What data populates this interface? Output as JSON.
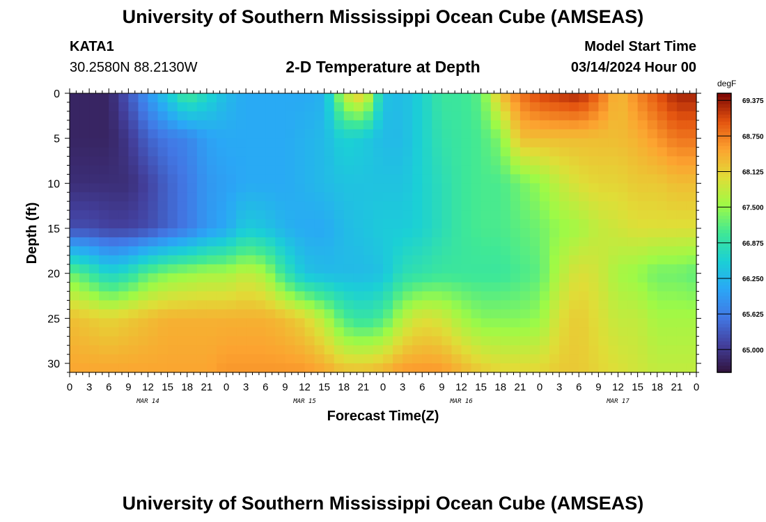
{
  "header": {
    "title": "University of Southern Mississippi Ocean Cube (AMSEAS)",
    "station": "KATA1",
    "coords": "30.2580N  88.2130W",
    "subtitle": "2-D Temperature at Depth",
    "model_start_label": "Model Start Time",
    "model_start_value": "03/14/2024 Hour 00"
  },
  "footer": {
    "title": "University of Southern Mississippi Ocean Cube (AMSEAS)"
  },
  "chart_data": {
    "type": "heatmap",
    "title": "2-D Temperature at Depth",
    "xlabel": "Forecast Time(Z)",
    "ylabel": "Depth (ft)",
    "xlim": [
      0,
      96
    ],
    "ylim": [
      0,
      31
    ],
    "x_ticks": [
      0,
      3,
      6,
      9,
      12,
      15,
      18,
      21,
      24,
      27,
      30,
      33,
      36,
      39,
      42,
      45,
      48,
      51,
      54,
      57,
      60,
      63,
      66,
      69,
      72,
      75,
      78,
      81,
      84,
      87,
      90,
      93,
      96
    ],
    "x_tick_labels": [
      "0",
      "3",
      "6",
      "9",
      "12",
      "15",
      "18",
      "21",
      "0",
      "3",
      "6",
      "9",
      "12",
      "15",
      "18",
      "21",
      "0",
      "3",
      "6",
      "9",
      "12",
      "15",
      "18",
      "21",
      "0",
      "3",
      "6",
      "9",
      "12",
      "15",
      "18",
      "21",
      "0"
    ],
    "date_labels": [
      {
        "x": 12,
        "label": "MAR 14"
      },
      {
        "x": 36,
        "label": "MAR 15"
      },
      {
        "x": 60,
        "label": "MAR 16"
      },
      {
        "x": 84,
        "label": "MAR 17"
      }
    ],
    "y_ticks": [
      0,
      5,
      10,
      15,
      20,
      25,
      30
    ],
    "colorbar": {
      "unit": "degF",
      "min": 64.6,
      "max": 69.5,
      "tick_values": [
        69.375,
        68.75,
        68.125,
        67.5,
        66.875,
        66.25,
        65.625,
        65.0
      ],
      "tick_labels": [
        "69.375",
        "68.750",
        "68.125",
        "67.500",
        "66.875",
        "66.250",
        "65.625",
        "65.000"
      ]
    },
    "grid_times": [
      0,
      3,
      6,
      9,
      12,
      15,
      18,
      21,
      24,
      27,
      30,
      33,
      36,
      39,
      42,
      45,
      48,
      51,
      54,
      57,
      60,
      63,
      66,
      69,
      72,
      75,
      78,
      81,
      84,
      87,
      90,
      93,
      96
    ],
    "grid_depths": [
      0,
      5,
      10,
      15,
      20,
      25,
      31
    ],
    "values": [
      [
        64.8,
        64.8,
        64.8,
        65.3,
        65.9,
        66.5,
        67.1,
        66.7,
        66.3,
        66.1,
        66.1,
        66.1,
        66.1,
        66.2,
        67.8,
        68.3,
        66.4,
        66.3,
        66.6,
        67.0,
        67.0,
        67.2,
        68.3,
        68.8,
        69.1,
        69.2,
        69.3,
        68.9,
        68.3,
        68.7,
        69.0,
        69.3,
        69.3
      ],
      [
        64.8,
        64.8,
        64.8,
        65.0,
        65.4,
        65.6,
        65.7,
        66.0,
        66.1,
        66.1,
        66.1,
        66.1,
        66.2,
        66.3,
        66.6,
        66.5,
        66.3,
        66.3,
        66.6,
        66.9,
        67.0,
        67.1,
        67.4,
        68.3,
        68.3,
        68.3,
        68.3,
        68.3,
        68.3,
        68.4,
        68.6,
        68.8,
        68.8
      ],
      [
        64.9,
        64.9,
        64.9,
        64.9,
        65.1,
        65.4,
        65.6,
        65.9,
        66.0,
        66.1,
        66.1,
        66.1,
        66.2,
        66.3,
        66.4,
        66.4,
        66.4,
        66.4,
        66.6,
        66.8,
        67.0,
        67.1,
        67.1,
        67.3,
        67.5,
        67.8,
        68.0,
        68.1,
        68.1,
        68.2,
        68.2,
        68.3,
        68.3
      ],
      [
        65.2,
        65.2,
        65.1,
        65.1,
        65.2,
        65.4,
        65.6,
        65.9,
        66.1,
        66.5,
        66.4,
        66.2,
        66.1,
        66.1,
        66.3,
        66.4,
        66.5,
        66.5,
        66.6,
        66.8,
        67.0,
        67.1,
        67.1,
        67.2,
        67.3,
        67.5,
        67.6,
        67.8,
        67.9,
        68.0,
        68.0,
        68.0,
        68.0
      ],
      [
        67.3,
        67.0,
        66.6,
        66.8,
        67.2,
        67.4,
        67.5,
        67.6,
        67.6,
        67.8,
        67.6,
        66.9,
        66.4,
        66.3,
        66.3,
        66.3,
        66.4,
        66.8,
        66.9,
        67.0,
        67.0,
        67.0,
        67.0,
        67.1,
        67.2,
        67.7,
        68.0,
        67.9,
        67.6,
        67.5,
        67.3,
        67.3,
        67.2
      ],
      [
        68.3,
        68.2,
        68.1,
        68.2,
        68.3,
        68.4,
        68.4,
        68.4,
        68.4,
        68.4,
        68.4,
        68.3,
        68.1,
        67.7,
        67.1,
        66.9,
        67.1,
        67.7,
        68.0,
        67.9,
        67.6,
        67.4,
        67.4,
        67.4,
        67.5,
        68.0,
        68.2,
        68.0,
        67.8,
        67.8,
        67.6,
        67.6,
        67.6
      ],
      [
        68.5,
        68.5,
        68.5,
        68.5,
        68.5,
        68.5,
        68.5,
        68.5,
        68.6,
        68.6,
        68.6,
        68.6,
        68.6,
        68.5,
        68.3,
        68.3,
        68.4,
        68.6,
        68.6,
        68.6,
        68.4,
        68.2,
        68.1,
        68.1,
        68.1,
        68.2,
        68.2,
        68.1,
        68.0,
        67.9,
        67.8,
        67.8,
        67.8
      ]
    ]
  }
}
